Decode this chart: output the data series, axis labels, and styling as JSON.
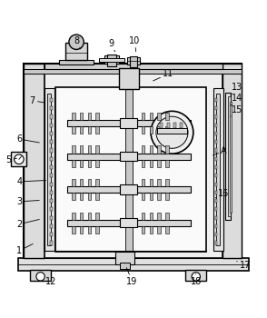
{
  "bg_color": "#ffffff",
  "lc": "#000000",
  "fc_outer": "#e8e8e8",
  "fc_inner": "#f5f5f5",
  "fc_gray": "#d0d0d0",
  "fc_darkgray": "#b0b0b0",
  "label_positions": {
    "1": {
      "txt": [
        0.07,
        0.155
      ],
      "pt": [
        0.13,
        0.185
      ]
    },
    "2": {
      "txt": [
        0.07,
        0.255
      ],
      "pt": [
        0.155,
        0.275
      ]
    },
    "3": {
      "txt": [
        0.07,
        0.34
      ],
      "pt": [
        0.155,
        0.345
      ]
    },
    "4": {
      "txt": [
        0.07,
        0.415
      ],
      "pt": [
        0.18,
        0.42
      ]
    },
    "5": {
      "txt": [
        0.03,
        0.495
      ],
      "pt": [
        0.07,
        0.505
      ]
    },
    "6": {
      "txt": [
        0.07,
        0.575
      ],
      "pt": [
        0.155,
        0.56
      ]
    },
    "7": {
      "txt": [
        0.12,
        0.72
      ],
      "pt": [
        0.175,
        0.71
      ]
    },
    "8": {
      "txt": [
        0.285,
        0.945
      ],
      "pt": [
        0.305,
        0.905
      ]
    },
    "9": {
      "txt": [
        0.415,
        0.935
      ],
      "pt": [
        0.435,
        0.895
      ]
    },
    "10": {
      "txt": [
        0.505,
        0.945
      ],
      "pt": [
        0.51,
        0.895
      ]
    },
    "11": {
      "txt": [
        0.63,
        0.82
      ],
      "pt": [
        0.565,
        0.79
      ]
    },
    "12": {
      "txt": [
        0.19,
        0.04
      ],
      "pt": [
        0.19,
        0.078
      ]
    },
    "13": {
      "txt": [
        0.89,
        0.77
      ],
      "pt": [
        0.865,
        0.74
      ]
    },
    "14": {
      "txt": [
        0.89,
        0.73
      ],
      "pt": [
        0.865,
        0.7
      ]
    },
    "15": {
      "txt": [
        0.89,
        0.685
      ],
      "pt": [
        0.865,
        0.66
      ]
    },
    "16": {
      "txt": [
        0.84,
        0.37
      ],
      "pt": [
        0.8,
        0.35
      ]
    },
    "17": {
      "txt": [
        0.92,
        0.1
      ],
      "pt": [
        0.88,
        0.12
      ]
    },
    "18": {
      "txt": [
        0.735,
        0.04
      ],
      "pt": [
        0.735,
        0.078
      ]
    },
    "19": {
      "txt": [
        0.495,
        0.04
      ],
      "pt": [
        0.47,
        0.1
      ]
    },
    "A": {
      "txt": [
        0.84,
        0.53
      ],
      "pt": [
        0.79,
        0.51
      ]
    }
  }
}
